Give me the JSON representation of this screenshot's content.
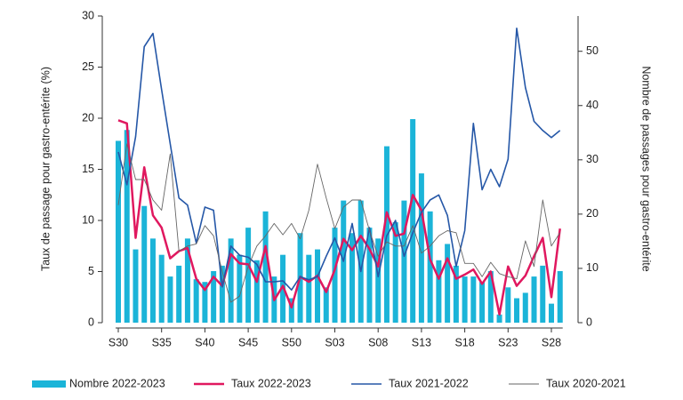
{
  "chart_data": {
    "type": "combo",
    "y_label": "Taux de passage pour gastro-entérite (%)",
    "y2_label": "Nombre de passages pour gastro-entérite",
    "categories": [
      "S30",
      null,
      null,
      null,
      null,
      "S35",
      null,
      null,
      null,
      null,
      "S40",
      null,
      null,
      null,
      null,
      "S45",
      null,
      null,
      null,
      null,
      "S50",
      null,
      null,
      null,
      null,
      "S03",
      null,
      null,
      null,
      null,
      "S08",
      null,
      null,
      null,
      null,
      "S13",
      null,
      null,
      null,
      null,
      "S18",
      null,
      null,
      null,
      null,
      "S23",
      null,
      null,
      null,
      null,
      "S28",
      null
    ],
    "ylim": [
      0,
      30
    ],
    "yticks": [
      0,
      5,
      10,
      15,
      20,
      25,
      30
    ],
    "y2lim": [
      0,
      56.5
    ],
    "y2ticks": [
      0,
      10,
      20,
      30,
      40,
      50
    ],
    "series": [
      {
        "name": "Nombre 2022-2023",
        "type": "bar",
        "axis": "y2",
        "color": "#1bb4d8",
        "values": [
          33.5,
          35.5,
          13.5,
          21.5,
          15.5,
          12.5,
          8.5,
          10.5,
          15.5,
          8,
          7.5,
          9.5,
          10.5,
          15.5,
          12.5,
          17.5,
          11.5,
          20.5,
          8.5,
          12.5,
          4.5,
          16.5,
          12.5,
          13.5,
          6.5,
          17.5,
          22.5,
          16.5,
          22.5,
          17.5,
          15.5,
          32.5,
          18.5,
          22.5,
          37.5,
          27.5,
          20.5,
          11.5,
          14.5,
          10.5,
          8.5,
          8.5,
          7.5,
          9.5,
          1.5,
          6.5,
          4.5,
          5.5,
          8.5,
          10.5,
          3.5,
          9.5
        ]
      },
      {
        "name": "Taux 2022-2023",
        "type": "line",
        "color": "#e0185f",
        "line_width": 2.5,
        "values": [
          19.8,
          19.5,
          8.3,
          15.2,
          10.5,
          9.3,
          6.3,
          7,
          7.3,
          4.3,
          3.2,
          4.5,
          3.6,
          6.7,
          5.8,
          5.7,
          4,
          7.5,
          2.2,
          3.6,
          1.5,
          4.5,
          4,
          4.6,
          3,
          5.2,
          8.2,
          7.1,
          8.5,
          7.2,
          5.5,
          10.8,
          8.5,
          8.7,
          12.5,
          11,
          6.2,
          4.3,
          6.3,
          4.3,
          4.7,
          5.2,
          3.8,
          5,
          0.8,
          5.5,
          3.6,
          4.6,
          6.5,
          8.3,
          2.5,
          9.2
        ]
      },
      {
        "name": "Taux 2021-2022",
        "type": "line",
        "color": "#2557a7",
        "line_width": 1.6,
        "values": [
          16.7,
          13.5,
          18.2,
          27,
          28.3,
          22.8,
          17.5,
          12.2,
          11.5,
          7.8,
          11.3,
          11,
          3.5,
          7.5,
          6.6,
          6.4,
          5.7,
          4,
          4,
          4.1,
          3.2,
          4.5,
          4.2,
          4.5,
          6.5,
          8.3,
          6,
          9.7,
          5,
          9.3,
          4.5,
          8.5,
          10,
          6.5,
          8.8,
          10.8,
          12,
          12.5,
          10.5,
          5.5,
          9,
          19.5,
          13,
          15,
          13.3,
          16,
          28.8,
          23,
          19.7,
          18.8,
          18.1,
          18.8
        ]
      },
      {
        "name": "Taux 2020-2021",
        "type": "line",
        "color": "#666666",
        "line_width": 0.9,
        "values": [
          11.5,
          17.5,
          14,
          14,
          12,
          11,
          16.5,
          7,
          7.5,
          7.7,
          9.5,
          8.5,
          5,
          2,
          2.6,
          5.5,
          7.5,
          8.5,
          9.7,
          8.6,
          9.7,
          8.2,
          11,
          15.5,
          12.2,
          9.2,
          11.3,
          12,
          12,
          9,
          6.5,
          7.9,
          7.5,
          7.5,
          9.5,
          6.8,
          7.5,
          8.5,
          9,
          8.8,
          5.8,
          5.8,
          4.5,
          5.9,
          4.8,
          4.5,
          4.3,
          8,
          5.5,
          12,
          7.5,
          8.8
        ]
      }
    ]
  }
}
